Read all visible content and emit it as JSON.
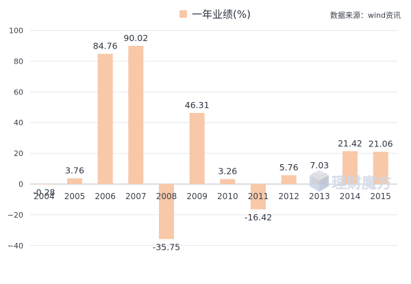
{
  "chart_data": {
    "type": "bar",
    "categories": [
      "2004",
      "2005",
      "2006",
      "2007",
      "2008",
      "2009",
      "2010",
      "2011",
      "2012",
      "2013",
      "2014",
      "2015"
    ],
    "series": [
      {
        "name": "一年业绩(%)",
        "values": [
          -0.28,
          3.76,
          84.76,
          90.02,
          -35.75,
          46.31,
          3.26,
          -16.42,
          5.76,
          7.03,
          21.42,
          21.06
        ],
        "labels": [
          "-0.28",
          "3.76",
          "84.76",
          "90.02",
          "-35.75",
          "46.31",
          "3.26",
          "-16.42",
          "5.76",
          "7.03",
          "21.42",
          "21.06"
        ]
      }
    ],
    "yticks": [
      100,
      80,
      60,
      40,
      20,
      0,
      -20,
      -40
    ],
    "ytick_labels": [
      "100",
      "80",
      "60",
      "40",
      "20",
      "0",
      "−20",
      "−40"
    ],
    "ylim": [
      -45,
      100
    ],
    "grid": true,
    "legend": "top-center",
    "source_note": "数据来源：wind资讯",
    "watermark": "理财魔方"
  },
  "colors": {
    "bar": "#f8c8a8",
    "grid": "#e3e6ea",
    "axis": "#b9bec6",
    "watermark": "#cfd8e6"
  },
  "icons": {
    "watermark_logo": "cube-logo-icon"
  }
}
